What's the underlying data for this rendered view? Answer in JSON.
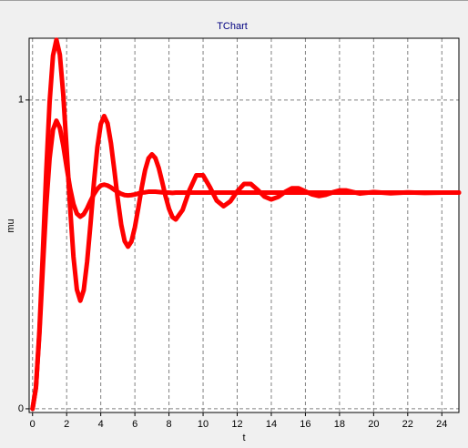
{
  "chart_data": {
    "type": "line",
    "title": "TChart",
    "xlabel": "t",
    "ylabel": "mu",
    "x": [
      0,
      0.2,
      0.4,
      0.6,
      0.8,
      1,
      1.2,
      1.4,
      1.6,
      1.8,
      2,
      2.2,
      2.4,
      2.6,
      2.8,
      3,
      3.2,
      3.4,
      3.6,
      3.8,
      4,
      4.2,
      4.4,
      4.6,
      4.8,
      5,
      5.2,
      5.4,
      5.6,
      5.8,
      6,
      6.2,
      6.4,
      6.6,
      6.8,
      7,
      7.2,
      7.4,
      7.6,
      7.8,
      8,
      8.2,
      8.4,
      8.8,
      9.2,
      9.6,
      10,
      10.4,
      10.8,
      11.2,
      11.6,
      12,
      12.4,
      12.8,
      13.2,
      13.6,
      14,
      14.4,
      14.8,
      15.2,
      15.6,
      16,
      16.4,
      16.8,
      17.2,
      17.6,
      18,
      18.4,
      18.8,
      19.2,
      20,
      21,
      22,
      23,
      24,
      25
    ],
    "series": [
      {
        "color": "#ff0000",
        "values": [
          0,
          0.068,
          0.251,
          0.5,
          0.765,
          0.993,
          1.144,
          1.195,
          1.147,
          1.018,
          0.841,
          0.654,
          0.492,
          0.386,
          0.35,
          0.384,
          0.476,
          0.6,
          0.733,
          0.847,
          0.922,
          0.948,
          0.924,
          0.859,
          0.771,
          0.677,
          0.596,
          0.543,
          0.525,
          0.542,
          0.588,
          0.65,
          0.716,
          0.773,
          0.811,
          0.824,
          0.812,
          0.78,
          0.735,
          0.688,
          0.648,
          0.621,
          0.613,
          0.644,
          0.708,
          0.756,
          0.756,
          0.718,
          0.674,
          0.656,
          0.672,
          0.704,
          0.728,
          0.728,
          0.709,
          0.687,
          0.678,
          0.686,
          0.702,
          0.714,
          0.714,
          0.704,
          0.694,
          0.689,
          0.693,
          0.701,
          0.707,
          0.707,
          0.702,
          0.697,
          0.702,
          0.698,
          0.701,
          0.699,
          0.7,
          0.7
        ]
      },
      {
        "color": "#ff0000",
        "values": [
          0,
          0.07,
          0.241,
          0.453,
          0.656,
          0.811,
          0.904,
          0.933,
          0.91,
          0.853,
          0.782,
          0.715,
          0.663,
          0.632,
          0.622,
          0.63,
          0.649,
          0.673,
          0.695,
          0.712,
          0.723,
          0.726,
          0.723,
          0.717,
          0.709,
          0.702,
          0.696,
          0.692,
          0.691,
          0.692,
          0.694,
          0.697,
          0.7,
          0.701,
          0.703,
          0.703,
          0.703,
          0.702,
          0.701,
          0.7,
          0.7,
          0.699,
          0.7,
          0.7,
          0.7,
          0.7,
          0.7,
          0.7,
          0.7,
          0.7,
          0.7,
          0.7,
          0.7,
          0.7,
          0.7,
          0.7,
          0.7,
          0.7,
          0.7,
          0.7,
          0.7,
          0.7,
          0.7,
          0.7,
          0.7,
          0.7,
          0.7,
          0.7,
          0.7,
          0.7,
          0.7,
          0.7,
          0.7,
          0.7,
          0.7,
          0.7
        ]
      }
    ],
    "xlim": [
      -0.2,
      25
    ],
    "ylim": [
      -0.012,
      1.2
    ],
    "xticks": [
      0,
      2,
      4,
      6,
      8,
      10,
      12,
      14,
      16,
      18,
      20,
      22,
      24
    ],
    "yticks": [
      0,
      1
    ],
    "grid": true
  }
}
